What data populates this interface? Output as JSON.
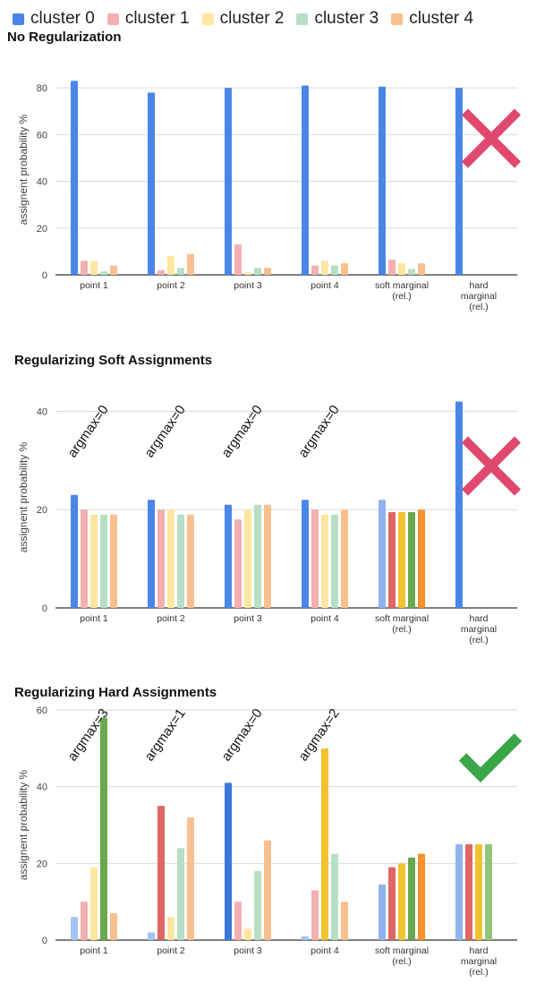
{
  "legend": [
    {
      "name": "cluster 0",
      "color": "#4a86e8"
    },
    {
      "name": "cluster 1",
      "color": "#f4b0b0"
    },
    {
      "name": "cluster 2",
      "color": "#fde7a0"
    },
    {
      "name": "cluster 3",
      "color": "#b8dfc5"
    },
    {
      "name": "cluster 4",
      "color": "#f9c08f"
    }
  ],
  "chart_data": [
    {
      "type": "bar",
      "title": "No Regularization",
      "ylabel": "assignent probability %",
      "ylim": [
        0,
        90
      ],
      "yticks": [
        0,
        20,
        40,
        60,
        80
      ],
      "categories": [
        "point 1",
        "point 2",
        "point 3",
        "point 4",
        "soft marginal (rel.)",
        "hard marginal (rel.)"
      ],
      "series": [
        {
          "name": "cluster 0",
          "values": [
            83,
            78,
            80,
            81,
            80.5,
            80
          ]
        },
        {
          "name": "cluster 1",
          "values": [
            6,
            2,
            13,
            4,
            6.5,
            0
          ]
        },
        {
          "name": "cluster 2",
          "values": [
            6,
            8,
            1,
            6,
            5,
            0
          ]
        },
        {
          "name": "cluster 3",
          "values": [
            1.5,
            3,
            3,
            4,
            2.5,
            0
          ]
        },
        {
          "name": "cluster 4",
          "values": [
            4,
            9,
            3,
            5,
            5,
            0
          ]
        }
      ],
      "annotations": [],
      "mark": "cross"
    },
    {
      "type": "bar",
      "title": "Regularizing Soft Assignments",
      "ylabel": "assignent probability %",
      "ylim": [
        0,
        45
      ],
      "yticks": [
        0,
        20,
        40
      ],
      "categories": [
        "point 1",
        "point 2",
        "point 3",
        "point 4",
        "soft marginal (rel.)",
        "hard marginal (rel.)"
      ],
      "series": [
        {
          "name": "cluster 0",
          "values": [
            23,
            22,
            21,
            22,
            22,
            42
          ]
        },
        {
          "name": "cluster 1",
          "values": [
            20,
            20,
            18,
            20,
            19.5,
            0
          ]
        },
        {
          "name": "cluster 2",
          "values": [
            19,
            20,
            20,
            19,
            19.5,
            0
          ]
        },
        {
          "name": "cluster 3",
          "values": [
            19,
            19,
            21,
            19,
            19.5,
            0
          ]
        },
        {
          "name": "cluster 4",
          "values": [
            19,
            19,
            21,
            20,
            20,
            0
          ]
        }
      ],
      "annotations": [
        "argmax=0",
        "argmax=0",
        "argmax=0",
        "argmax=0"
      ],
      "mark": "cross"
    },
    {
      "type": "bar",
      "title": "Regularizing Hard Assignments",
      "ylabel": "assignent probability %",
      "ylim": [
        0,
        60
      ],
      "yticks": [
        0,
        20,
        40,
        60
      ],
      "categories": [
        "point 1",
        "point 2",
        "point 3",
        "point 4",
        "soft marginal (rel.)",
        "hard marginal (rel.)"
      ],
      "series": [
        {
          "name": "cluster 0",
          "values": [
            6,
            2,
            41,
            1,
            14.5,
            25
          ]
        },
        {
          "name": "cluster 1",
          "values": [
            10,
            35,
            10,
            13,
            19,
            25
          ]
        },
        {
          "name": "cluster 2",
          "values": [
            19,
            6,
            3,
            50,
            20,
            25
          ]
        },
        {
          "name": "cluster 3",
          "values": [
            58,
            24,
            18,
            22.5,
            21.5,
            25
          ]
        },
        {
          "name": "cluster 4",
          "values": [
            7,
            32,
            26,
            10,
            22.5,
            0
          ]
        }
      ],
      "annotations": [
        "argmax=3",
        "argmax=1",
        "argmax=0",
        "argmax=2"
      ],
      "mark": "check"
    }
  ]
}
